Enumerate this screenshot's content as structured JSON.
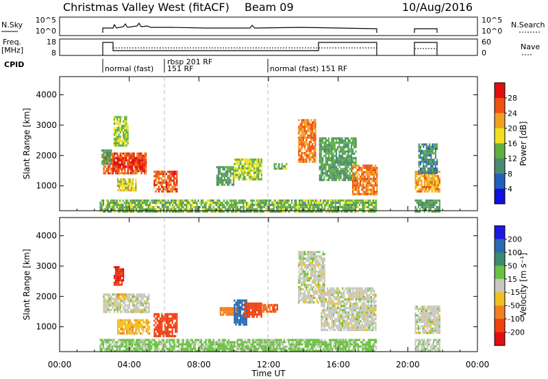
{
  "header": {
    "station": "Christmas Valley West (fitACF)",
    "beam": "Beam 09",
    "date": "10/Aug/2016"
  },
  "panels_top": {
    "nsky_label": "N.Sky",
    "nsky_ticks": [
      "10^5",
      "10^0"
    ],
    "nsky_right_ticks": [
      "10^5",
      "10^0"
    ],
    "nsearch_label": "N.Search",
    "freq_label": [
      "Freq.",
      "[MHz]"
    ],
    "freq_ticks": [
      "18",
      "8"
    ],
    "nave_ticks": [
      "60",
      "0"
    ],
    "nave_label": "Nave",
    "cpid_label": "CPID",
    "cpid_segments": [
      {
        "start_h": 2.3,
        "label": "normal (fast)"
      },
      {
        "start_h": 5.9,
        "label": "rbsp 201 RF"
      },
      {
        "start_h": 5.9,
        "label": "151 RF"
      },
      {
        "start_h": 12.0,
        "label": "normal (fast) 151 RF"
      }
    ]
  },
  "axes": {
    "ylabel": "Slant Range [km]",
    "xlabel": "Time UT",
    "xticks": [
      "00:00",
      "04:00",
      "08:00",
      "12:00",
      "16:00",
      "20:00",
      "00:00"
    ],
    "yticks": [
      "1000",
      "2000",
      "3000",
      "4000"
    ]
  },
  "colorbars": {
    "power": {
      "label": "Power [dB]",
      "ticks": [
        "4",
        "8",
        "12",
        "16",
        "20",
        "24",
        "28"
      ],
      "colors": [
        "#1010e0",
        "#2060c0",
        "#4a8a70",
        "#60b040",
        "#f0e020",
        "#f0a020",
        "#f05010",
        "#e01010"
      ]
    },
    "velocity": {
      "label": "Velocity [m s⁻¹]",
      "ticks": [
        "200",
        "100",
        "50",
        "15",
        "-15",
        "-50",
        "-100",
        "-200"
      ],
      "colors": [
        "#1a1ae0",
        "#2a6ab0",
        "#3a8a70",
        "#6ac040",
        "#c8c8c0",
        "#f0c020",
        "#f08020",
        "#f04010",
        "#e01010"
      ]
    }
  },
  "chart_data": [
    {
      "type": "heatmap",
      "name": "power",
      "x_unit": "hours UT",
      "y_unit": "km",
      "xlim": [
        0,
        24
      ],
      "ylim": [
        180,
        4600
      ],
      "patches": [
        {
          "x0": 2.5,
          "x1": 5.0,
          "y0": 1450,
          "y1": 2100,
          "v": 26
        },
        {
          "x0": 3.0,
          "x1": 4.9,
          "y0": 1600,
          "y1": 1950,
          "v": 28
        },
        {
          "x0": 2.4,
          "x1": 3.0,
          "y0": 1700,
          "y1": 2200,
          "v": 12
        },
        {
          "x0": 3.3,
          "x1": 4.4,
          "y0": 850,
          "y1": 1250,
          "v": 18
        },
        {
          "x0": 5.4,
          "x1": 6.7,
          "y0": 800,
          "y1": 1500,
          "v": 26
        },
        {
          "x0": 3.1,
          "x1": 3.9,
          "y0": 2300,
          "y1": 3300,
          "v": 16
        },
        {
          "x0": 9.0,
          "x1": 10.0,
          "y0": 1050,
          "y1": 1650,
          "v": 12
        },
        {
          "x0": 10.0,
          "x1": 11.6,
          "y0": 1250,
          "y1": 1900,
          "v": 16
        },
        {
          "x0": 12.3,
          "x1": 13.0,
          "y0": 1550,
          "y1": 1750,
          "v": 14
        },
        {
          "x0": 13.7,
          "x1": 14.7,
          "y0": 1800,
          "y1": 3200,
          "v": 24
        },
        {
          "x0": 14.9,
          "x1": 17.0,
          "y0": 1200,
          "y1": 2600,
          "v": 12
        },
        {
          "x0": 16.8,
          "x1": 18.2,
          "y0": 700,
          "y1": 1700,
          "v": 24
        },
        {
          "x0": 20.4,
          "x1": 21.8,
          "y0": 800,
          "y1": 1500,
          "v": 22
        },
        {
          "x0": 20.6,
          "x1": 21.7,
          "y0": 1400,
          "y1": 2400,
          "v": 10
        },
        {
          "x0": 2.3,
          "x1": 18.2,
          "y0": 180,
          "y1": 550,
          "v": 14
        },
        {
          "x0": 20.4,
          "x1": 21.8,
          "y0": 180,
          "y1": 550,
          "v": 12
        }
      ]
    },
    {
      "type": "heatmap",
      "name": "velocity",
      "x_unit": "hours UT",
      "y_unit": "km",
      "xlim": [
        0,
        24
      ],
      "ylim": [
        180,
        4600
      ],
      "patches": [
        {
          "x0": 2.5,
          "x1": 5.1,
          "y0": 1500,
          "y1": 2100,
          "v": 0
        },
        {
          "x0": 3.3,
          "x1": 3.8,
          "y0": 1900,
          "y1": 2100,
          "v": -50
        },
        {
          "x0": 3.3,
          "x1": 5.2,
          "y0": 800,
          "y1": 1250,
          "v": -40
        },
        {
          "x0": 5.4,
          "x1": 6.7,
          "y0": 700,
          "y1": 1450,
          "v": -160
        },
        {
          "x0": 3.1,
          "x1": 3.7,
          "y0": 2400,
          "y1": 3000,
          "v": -200
        },
        {
          "x0": 9.2,
          "x1": 10.2,
          "y0": 1400,
          "y1": 1650,
          "v": -80
        },
        {
          "x0": 10.0,
          "x1": 10.7,
          "y0": 1100,
          "y1": 1900,
          "v": 150
        },
        {
          "x0": 10.6,
          "x1": 11.6,
          "y0": 1300,
          "y1": 1800,
          "v": -120
        },
        {
          "x0": 11.6,
          "x1": 12.5,
          "y0": 1500,
          "y1": 1750,
          "v": -100
        },
        {
          "x0": 13.7,
          "x1": 15.2,
          "y0": 1800,
          "y1": 3500,
          "v": 0
        },
        {
          "x0": 15.0,
          "x1": 18.2,
          "y0": 900,
          "y1": 2300,
          "v": 0
        },
        {
          "x0": 20.4,
          "x1": 21.8,
          "y0": 800,
          "y1": 1700,
          "v": 0
        },
        {
          "x0": 2.3,
          "x1": 18.2,
          "y0": 180,
          "y1": 600,
          "v": 25
        },
        {
          "x0": 20.4,
          "x1": 21.8,
          "y0": 180,
          "y1": 600,
          "v": 5
        }
      ]
    }
  ]
}
